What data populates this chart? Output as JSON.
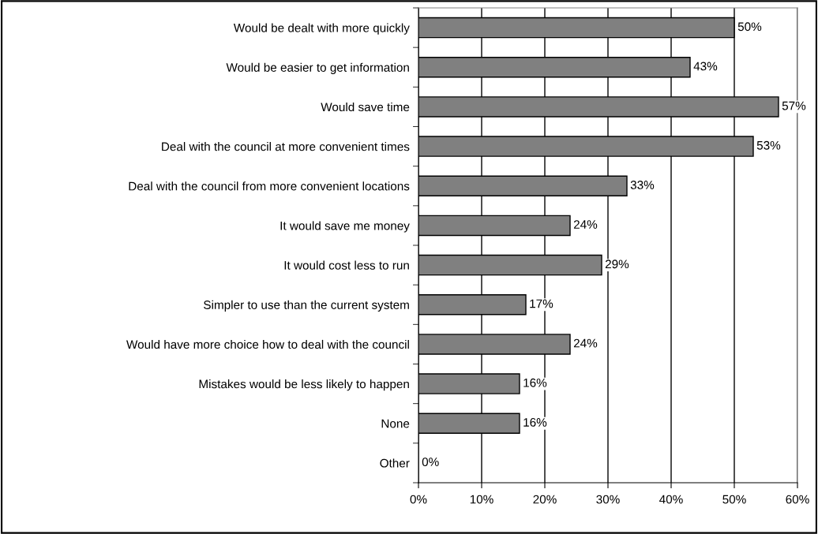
{
  "chart_data": {
    "type": "bar",
    "orientation": "horizontal",
    "categories": [
      "Would be dealt with more quickly",
      "Would be easier to get information",
      "Would save time",
      "Deal with the council at more convenient times",
      "Deal with the council from more convenient locations",
      "It would save me money",
      "It would cost less to run",
      "Simpler to use than the current system",
      "Would have more choice how to deal with the council",
      "Mistakes would be less likely to happen",
      "None",
      "Other"
    ],
    "values": [
      50,
      43,
      57,
      53,
      33,
      24,
      29,
      17,
      24,
      16,
      16,
      0
    ],
    "value_labels": [
      "50%",
      "43%",
      "57%",
      "53%",
      "33%",
      "24%",
      "29%",
      "17%",
      "24%",
      "16%",
      "16%",
      "0%"
    ],
    "color": "#808080",
    "xlim": [
      0,
      60
    ],
    "xticks": [
      {
        "value": 0,
        "label": "0%"
      },
      {
        "value": 10,
        "label": "10%"
      },
      {
        "value": 20,
        "label": "20%"
      },
      {
        "value": 30,
        "label": "30%"
      },
      {
        "value": 40,
        "label": "40%"
      },
      {
        "value": 50,
        "label": "50%"
      },
      {
        "value": 60,
        "label": "60%"
      }
    ],
    "grid": "x",
    "legend": false
  }
}
